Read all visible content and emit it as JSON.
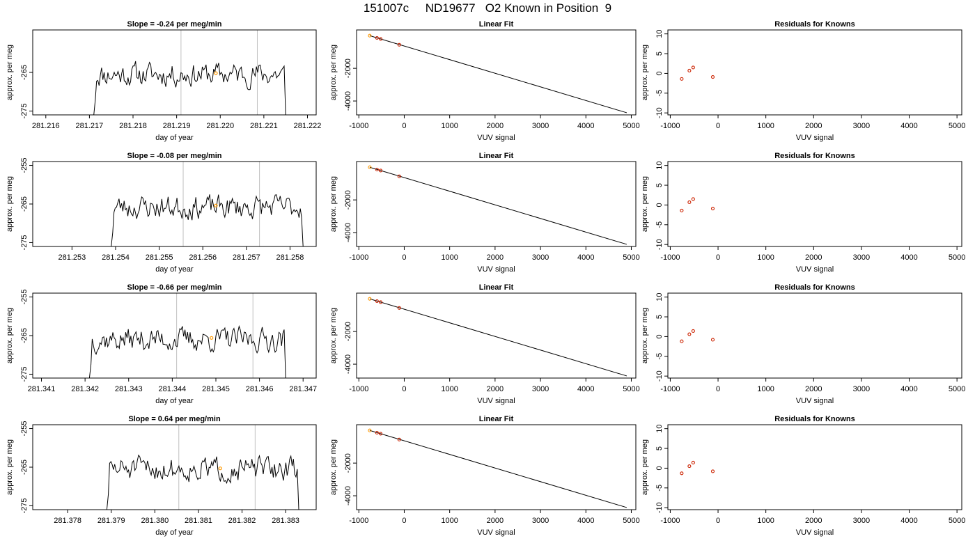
{
  "title": "151007c     ND19677   O2 Known in Position  9",
  "rows": [
    {
      "timeseries": {
        "title": "Slope =  -0.24  per meg/min",
        "xlabel": "day of year",
        "ylabel": "approx. per meg",
        "xlim": [
          281.2157,
          281.2222
        ],
        "ylim": [
          -276,
          -254
        ],
        "xticks": [
          "281.216",
          "281.217",
          "281.218",
          "281.219",
          "281.220",
          "281.221",
          "281.222"
        ],
        "yticks": [
          "-265",
          "-275"
        ],
        "trace_start": 281.2171,
        "trace_end": 281.2215,
        "trace_base": -265.5,
        "seed": 11,
        "vlines": [
          281.2191,
          281.22085
        ],
        "highlight": [
          281.2199,
          -265.2
        ]
      },
      "linear_fit": {
        "title": "Linear Fit",
        "xlabel": "VUV signal",
        "ylabel": "approx. per meg",
        "xlim": [
          -1050,
          5100
        ],
        "ylim": [
          -4850,
          350
        ],
        "xticks": [
          "-1000",
          "0",
          "1000",
          "2000",
          "3000",
          "4000",
          "5000"
        ],
        "yticks": [
          "-2000",
          "-4000"
        ],
        "line": [
          [
            -760,
            0
          ],
          [
            4900,
            -4720
          ]
        ],
        "points": [
          [
            -760,
            0
          ],
          [
            -600,
            -140
          ],
          [
            -520,
            -200
          ],
          [
            -110,
            -560
          ]
        ],
        "highlight_index": 0
      },
      "residuals": {
        "title": "Residuals for Knowns",
        "xlabel": "VUV signal",
        "ylabel": "approx. per meg",
        "xlim": [
          -1050,
          5100
        ],
        "ylim": [
          -10.5,
          11
        ],
        "xticks": [
          "-1000",
          "0",
          "1000",
          "2000",
          "3000",
          "4000",
          "5000"
        ],
        "yticks": [
          "-10",
          "-5",
          "0",
          "5",
          "10"
        ],
        "points": [
          [
            -760,
            -1.4
          ],
          [
            -600,
            0.7
          ],
          [
            -520,
            1.5
          ],
          [
            -110,
            -0.9
          ]
        ]
      }
    },
    {
      "timeseries": {
        "title": "Slope =  -0.08  per meg/min",
        "xlabel": "day of year",
        "ylabel": "approx. per meg",
        "xlim": [
          281.2521,
          281.2586
        ],
        "ylim": [
          -276,
          -254
        ],
        "xticks": [
          "281.253",
          "281.254",
          "281.255",
          "281.256",
          "281.257",
          "281.258"
        ],
        "yticks": [
          "-255",
          "-265",
          "-275"
        ],
        "trace_start": 281.2539,
        "trace_end": 281.2583,
        "trace_base": -265.8,
        "seed": 23,
        "vlines": [
          281.25555,
          281.2573
        ],
        "highlight": [
          281.2563,
          -265.4
        ]
      },
      "linear_fit": {
        "title": "Linear Fit",
        "xlabel": "VUV signal",
        "ylabel": "approx. per meg",
        "xlim": [
          -1050,
          5100
        ],
        "ylim": [
          -4850,
          350
        ],
        "xticks": [
          "-1000",
          "0",
          "1000",
          "2000",
          "3000",
          "4000",
          "5000"
        ],
        "yticks": [
          "-2000",
          "-4000"
        ],
        "line": [
          [
            -760,
            0
          ],
          [
            4900,
            -4720
          ]
        ],
        "points": [
          [
            -760,
            0
          ],
          [
            -600,
            -140
          ],
          [
            -520,
            -200
          ],
          [
            -110,
            -560
          ]
        ],
        "highlight_index": 0
      },
      "residuals": {
        "title": "Residuals for Knowns",
        "xlabel": "VUV signal",
        "ylabel": "approx. per meg",
        "xlim": [
          -1050,
          5100
        ],
        "ylim": [
          -10.5,
          11
        ],
        "xticks": [
          "-1000",
          "0",
          "1000",
          "2000",
          "3000",
          "4000",
          "5000"
        ],
        "yticks": [
          "-10",
          "-5",
          "0",
          "5",
          "10"
        ],
        "points": [
          [
            -760,
            -1.4
          ],
          [
            -600,
            0.7
          ],
          [
            -520,
            1.5
          ],
          [
            -110,
            -0.9
          ]
        ]
      }
    },
    {
      "timeseries": {
        "title": "Slope =  -0.66  per meg/min",
        "xlabel": "day of year",
        "ylabel": "approx. per meg",
        "xlim": [
          281.3408,
          281.3473
        ],
        "ylim": [
          -276,
          -254
        ],
        "xticks": [
          "281.341",
          "281.342",
          "281.343",
          "281.344",
          "281.345",
          "281.346",
          "281.347"
        ],
        "yticks": [
          "-255",
          "-265",
          "-275"
        ],
        "trace_start": 281.3421,
        "trace_end": 281.3466,
        "trace_base": -266.0,
        "seed": 37,
        "vlines": [
          281.3441,
          281.34585
        ],
        "highlight": [
          281.3449,
          -265.6
        ]
      },
      "linear_fit": {
        "title": "Linear Fit",
        "xlabel": "VUV signal",
        "ylabel": "approx. per meg",
        "xlim": [
          -1050,
          5100
        ],
        "ylim": [
          -4850,
          350
        ],
        "xticks": [
          "-1000",
          "0",
          "1000",
          "2000",
          "3000",
          "4000",
          "5000"
        ],
        "yticks": [
          "-2000",
          "-4000"
        ],
        "line": [
          [
            -760,
            0
          ],
          [
            4900,
            -4720
          ]
        ],
        "points": [
          [
            -760,
            0
          ],
          [
            -600,
            -140
          ],
          [
            -520,
            -200
          ],
          [
            -110,
            -560
          ]
        ],
        "highlight_index": 0
      },
      "residuals": {
        "title": "Residuals for Knowns",
        "xlabel": "VUV signal",
        "ylabel": "approx. per meg",
        "xlim": [
          -1050,
          5100
        ],
        "ylim": [
          -10.5,
          11
        ],
        "xticks": [
          "-1000",
          "0",
          "1000",
          "2000",
          "3000",
          "4000",
          "5000"
        ],
        "yticks": [
          "-10",
          "-5",
          "0",
          "5",
          "10"
        ],
        "points": [
          [
            -760,
            -1.2
          ],
          [
            -600,
            0.6
          ],
          [
            -520,
            1.4
          ],
          [
            -110,
            -0.8
          ]
        ]
      }
    },
    {
      "timeseries": {
        "title": "Slope =  0.64  per meg/min",
        "xlabel": "day of year",
        "ylabel": "approx. per meg",
        "xlim": [
          281.3772,
          281.3837
        ],
        "ylim": [
          -276,
          -254
        ],
        "xticks": [
          "281.378",
          "281.379",
          "281.380",
          "281.381",
          "281.382",
          "281.383"
        ],
        "yticks": [
          "-255",
          "-265",
          "-275"
        ],
        "trace_start": 281.3789,
        "trace_end": 281.3833,
        "trace_base": -265.5,
        "seed": 51,
        "vlines": [
          281.38055,
          281.3823
        ],
        "highlight": [
          281.3815,
          -265.3
        ]
      },
      "linear_fit": {
        "title": "Linear Fit",
        "xlabel": "VUV signal",
        "ylabel": "approx. per meg",
        "xlim": [
          -1050,
          5100
        ],
        "ylim": [
          -4850,
          350
        ],
        "xticks": [
          "-1000",
          "0",
          "1000",
          "2000",
          "3000",
          "4000",
          "5000"
        ],
        "yticks": [
          "-2000",
          "-4000"
        ],
        "line": [
          [
            -760,
            0
          ],
          [
            4900,
            -4720
          ]
        ],
        "points": [
          [
            -760,
            0
          ],
          [
            -600,
            -140
          ],
          [
            -520,
            -200
          ],
          [
            -110,
            -560
          ]
        ],
        "highlight_index": 0
      },
      "residuals": {
        "title": "Residuals for Knowns",
        "xlabel": "VUV signal",
        "ylabel": "approx. per meg",
        "xlim": [
          -1050,
          5100
        ],
        "ylim": [
          -10.5,
          11
        ],
        "xticks": [
          "-1000",
          "0",
          "1000",
          "2000",
          "3000",
          "4000",
          "5000"
        ],
        "yticks": [
          "-10",
          "-5",
          "0",
          "5",
          "10"
        ],
        "points": [
          [
            -760,
            -1.3
          ],
          [
            -600,
            0.5
          ],
          [
            -520,
            1.4
          ],
          [
            -110,
            -0.8
          ]
        ]
      }
    }
  ],
  "colors": {
    "axis": "#000000",
    "trace": "#000000",
    "vline": "#c0c0c0",
    "point": "#cc2200",
    "highlight": "#ff9900"
  }
}
